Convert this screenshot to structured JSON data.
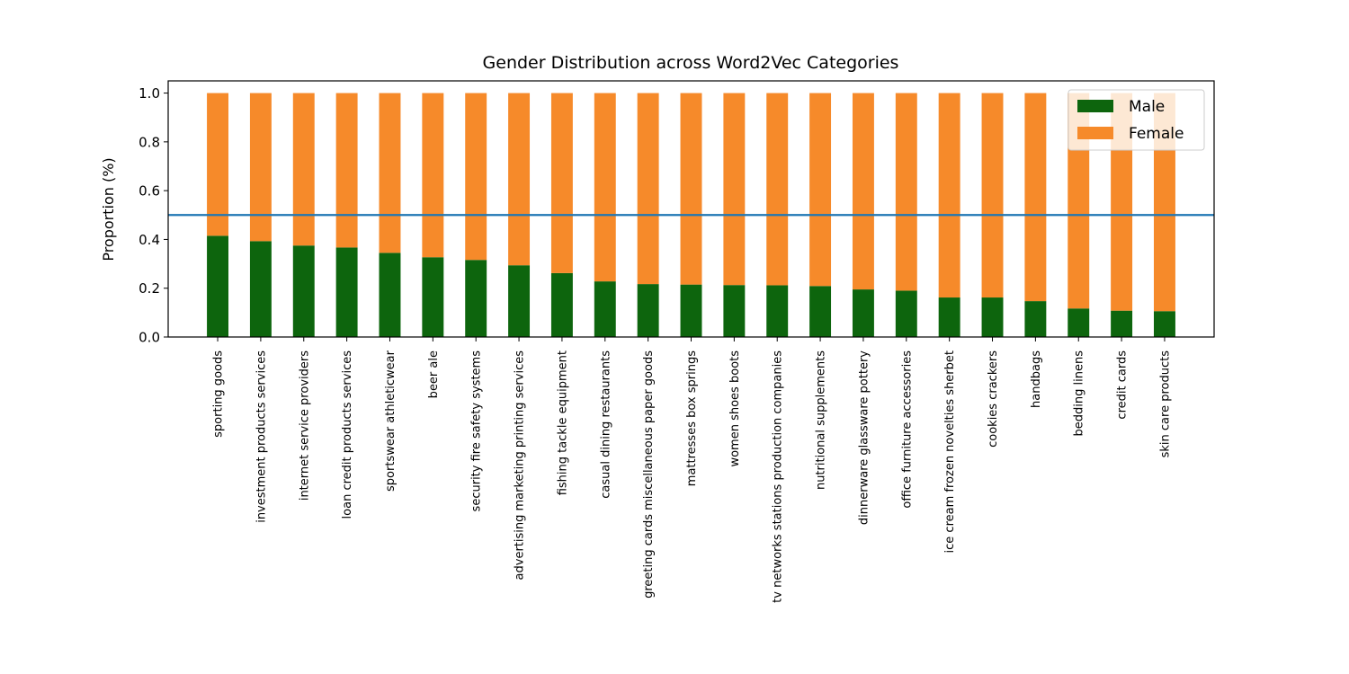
{
  "chart_data": {
    "type": "bar",
    "stacked": true,
    "title": "Gender Distribution across Word2Vec Categories",
    "xlabel": "",
    "ylabel": "Proportion (%)",
    "ylim": [
      0,
      1.05
    ],
    "yticks": [
      0.0,
      0.2,
      0.4,
      0.6,
      0.8,
      1.0
    ],
    "ytick_labels": [
      "0.0",
      "0.2",
      "0.4",
      "0.6",
      "0.8",
      "1.0"
    ],
    "reference_line": 0.5,
    "legend_position": "top-right",
    "grid": false,
    "categories": [
      "sporting goods",
      "investment products services",
      "internet service providers",
      "loan credit products services",
      "sportswear athleticwear",
      "beer ale",
      "security fire safety systems",
      "advertising marketing printing services",
      "fishing tackle equipment",
      "casual dining restaurants",
      "greeting cards miscellaneous paper goods",
      "mattresses box springs",
      "women shoes boots",
      "tv networks stations production companies",
      "nutritional supplements",
      "dinnerware glassware pottery",
      "office furniture accessories",
      "ice cream frozen novelties sherbet",
      "cookies crackers",
      "handbags",
      "bedding linens",
      "credit cards",
      "skin care products"
    ],
    "series": [
      {
        "name": "Male",
        "color": "#0d650d",
        "values": [
          0.415,
          0.393,
          0.375,
          0.367,
          0.345,
          0.327,
          0.316,
          0.294,
          0.262,
          0.228,
          0.217,
          0.215,
          0.213,
          0.212,
          0.209,
          0.195,
          0.19,
          0.162,
          0.162,
          0.147,
          0.117,
          0.108,
          0.106
        ]
      },
      {
        "name": "Female",
        "color": "#f68a2a",
        "values": [
          0.585,
          0.607,
          0.625,
          0.633,
          0.655,
          0.673,
          0.684,
          0.706,
          0.738,
          0.772,
          0.783,
          0.785,
          0.787,
          0.788,
          0.791,
          0.805,
          0.81,
          0.838,
          0.838,
          0.853,
          0.883,
          0.892,
          0.894
        ]
      }
    ],
    "reference_line_color": "#1f77b4"
  }
}
